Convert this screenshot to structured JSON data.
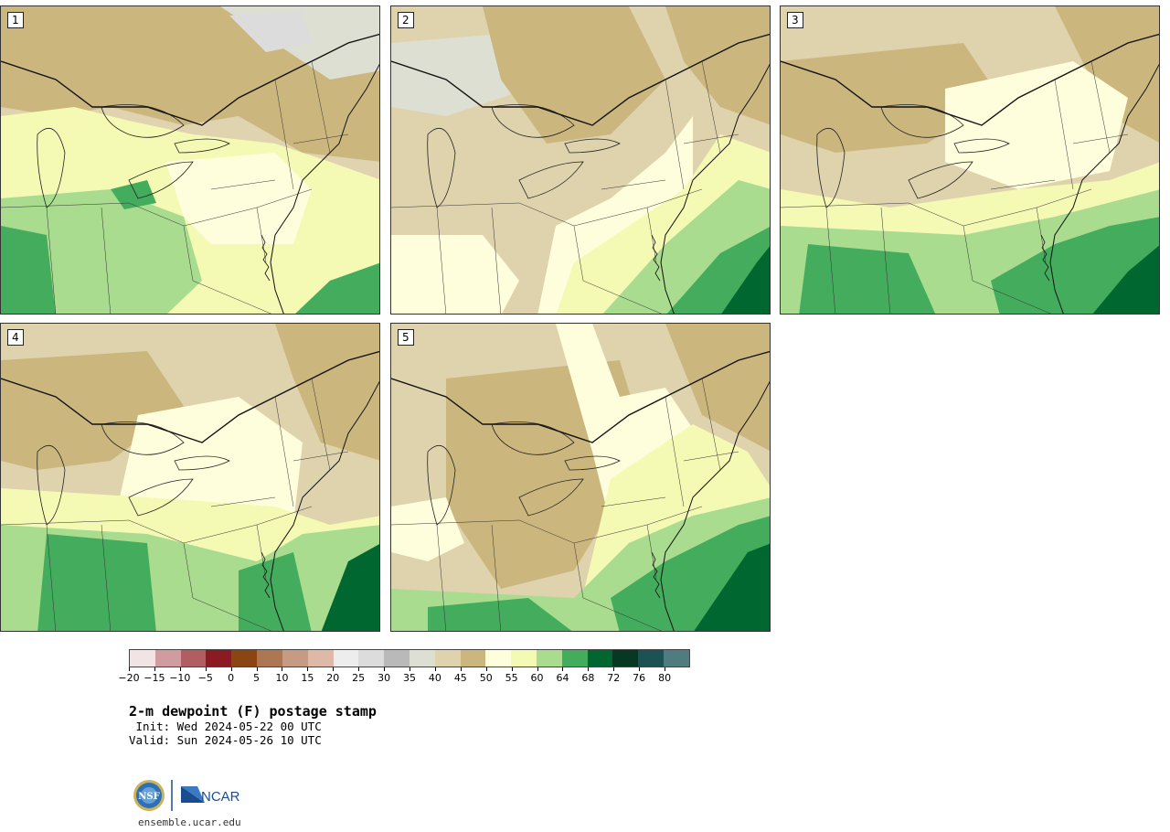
{
  "panels": [
    {
      "label": "1",
      "variant": 1
    },
    {
      "label": "2",
      "variant": 2
    },
    {
      "label": "3",
      "variant": 3
    },
    {
      "label": "4",
      "variant": 4
    },
    {
      "label": "5",
      "variant": 5
    }
  ],
  "colorbar": {
    "colors": [
      "#f0e4e4",
      "#d19c9f",
      "#b05e62",
      "#8b1a22",
      "#8a4512",
      "#ad7753",
      "#c59b83",
      "#deb9a8",
      "#ededed",
      "#dcdcdc",
      "#b9b9b9",
      "#dedfd3",
      "#dfd3ae",
      "#cbb67e",
      "#fefedc",
      "#f4f9b4",
      "#a9dc8f",
      "#44ad5d",
      "#006730",
      "#083821",
      "#1c5254",
      "#4f7c7f"
    ],
    "tick_labels": [
      "−20",
      "−15",
      "−10",
      "−5",
      "0",
      "5",
      "10",
      "15",
      "20",
      "25",
      "30",
      "35",
      "40",
      "45",
      "50",
      "55",
      "60",
      "64",
      "68",
      "72",
      "76",
      "80"
    ]
  },
  "title": "2-m dewpoint (F) postage stamp",
  "init_text": " Init: Wed 2024-05-22 00 UTC",
  "valid_text": "Valid: Sun 2024-05-26 10 UTC",
  "logos": {
    "nsf": "NSF",
    "ncar": "NCAR"
  },
  "url": "ensemble.ucar.edu"
}
